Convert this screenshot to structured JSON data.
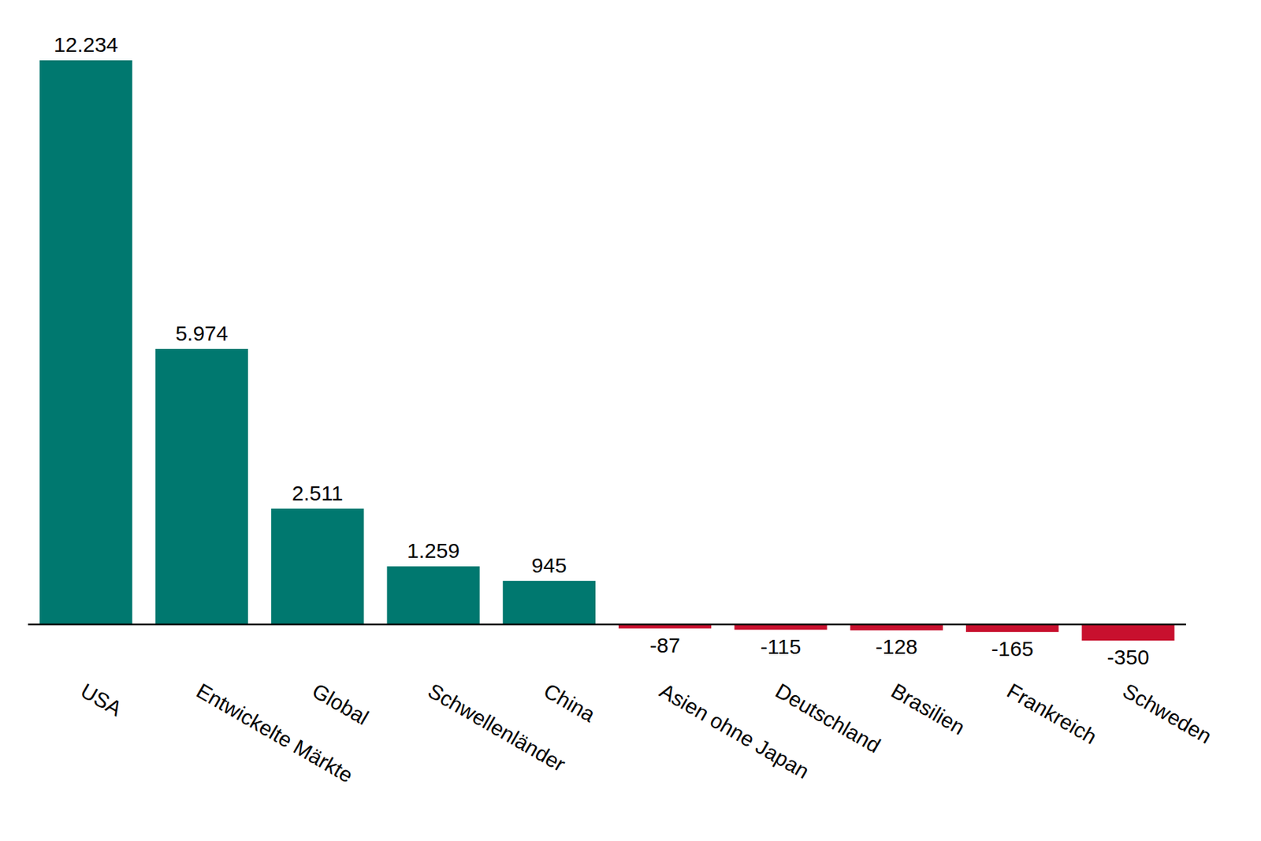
{
  "chart_data": {
    "type": "bar",
    "categories": [
      "USA",
      "Entwickelte Märkte",
      "Global",
      "Schwellenländer",
      "China",
      "Asien ohne Japan",
      "Deutschland",
      "Brasilien",
      "Frankreich",
      "Schweden"
    ],
    "values": [
      12234,
      5974,
      2511,
      1259,
      945,
      -87,
      -115,
      -128,
      -165,
      -350
    ],
    "value_labels": [
      "12.234",
      "5.974",
      "2.511",
      "1.259",
      "945",
      "-87",
      "-115",
      "-128",
      "-165",
      "-350"
    ],
    "colors": [
      "#00786f",
      "#00786f",
      "#00786f",
      "#00786f",
      "#00786f",
      "#c8102e",
      "#c8102e",
      "#c8102e",
      "#c8102e",
      "#c8102e"
    ],
    "ylim": [
      -350,
      12234
    ],
    "data_labels": true,
    "tick_labels": "x",
    "grid": false
  }
}
